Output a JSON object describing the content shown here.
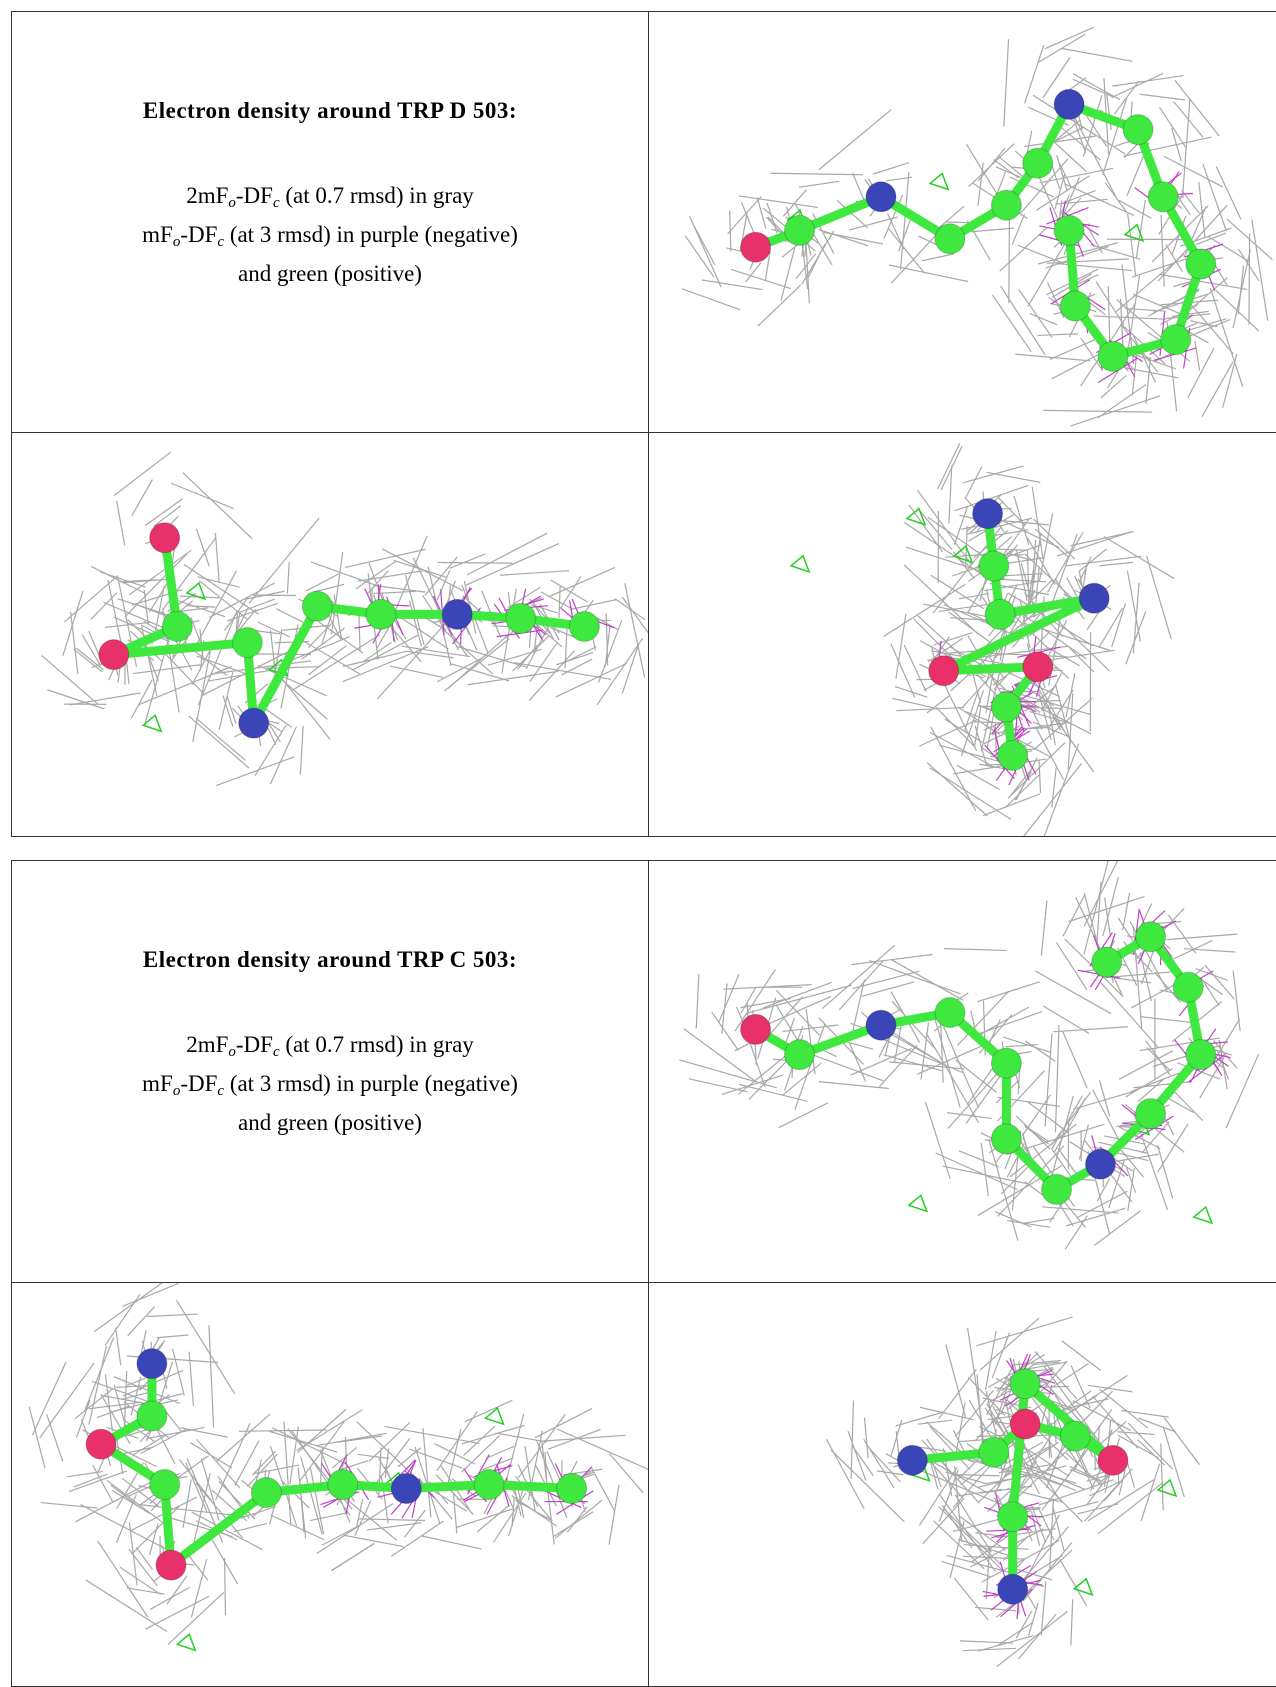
{
  "sections": [
    {
      "title": "Electron density around TRP D 503:",
      "lines": [
        [
          "2mF",
          "o",
          "-DF",
          "c",
          " (at 0.7 rmsd) in gray"
        ],
        [
          "mF",
          "o",
          "-DF",
          "c",
          " (at 3 rmsd) in purple (negative)"
        ],
        [
          "and green (positive)"
        ]
      ]
    },
    {
      "title": "Electron density around TRP C 503:",
      "lines": [
        [
          "2mF",
          "o",
          "-DF",
          "c",
          " (at 0.7 rmsd) in gray"
        ],
        [
          "mF",
          "o",
          "-DF",
          "c",
          " (at 3 rmsd) in purple (negative)"
        ],
        [
          "and green (positive)"
        ]
      ]
    }
  ]
}
